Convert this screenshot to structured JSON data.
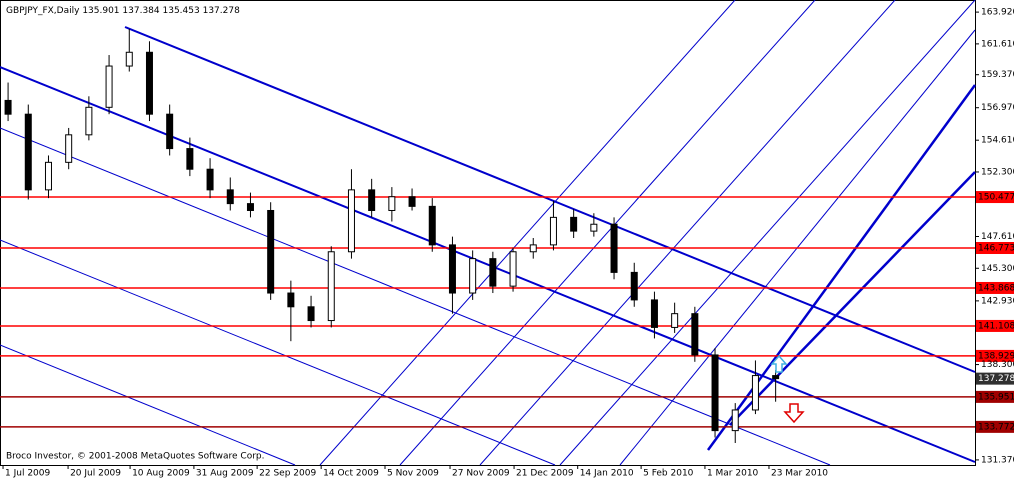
{
  "chart_data": {
    "type": "candlestick",
    "symbol": "GBPJPY_FX,Daily",
    "ohlc": [
      135.901,
      137.384,
      135.453,
      137.278
    ],
    "footer": "Broco Investor, © 2001-2008 MetaQuotes Software Corp.",
    "color": "#000000",
    "open": [
      157.5,
      156.5,
      151.0,
      153.0,
      155.0,
      157.0,
      160.0,
      161.0,
      156.5,
      154.0,
      152.5,
      151.0,
      150.0,
      149.5,
      143.5,
      142.5,
      141.5,
      146.5,
      151.0,
      149.5,
      150.5,
      149.8,
      147.0,
      143.5,
      146.0,
      144.0,
      146.5,
      147.0,
      149.0,
      148.0,
      148.5,
      145.0,
      143.0,
      141.0,
      142.0,
      139.0,
      133.5,
      135.0,
      137.5
    ],
    "high": [
      158.8,
      157.2,
      153.5,
      155.5,
      157.8,
      160.8,
      162.7,
      161.8,
      157.2,
      154.8,
      153.3,
      151.9,
      150.8,
      150.1,
      144.4,
      143.3,
      146.9,
      152.5,
      151.8,
      151.2,
      151.1,
      150.4,
      147.6,
      146.6,
      146.5,
      146.8,
      147.5,
      150.2,
      149.6,
      149.3,
      149.0,
      145.7,
      143.6,
      142.8,
      142.5,
      139.5,
      135.5,
      138.6,
      137.9
    ],
    "low": [
      156.0,
      150.3,
      150.4,
      152.5,
      154.6,
      156.5,
      159.6,
      156.0,
      153.5,
      152.0,
      150.4,
      149.5,
      149.0,
      143.0,
      140.0,
      141.0,
      141.0,
      146.0,
      149.0,
      148.7,
      149.5,
      146.5,
      142.0,
      143.0,
      143.5,
      143.6,
      146.0,
      146.6,
      147.5,
      147.6,
      144.5,
      142.5,
      140.2,
      140.6,
      138.5,
      133.0,
      132.6,
      134.7,
      135.6
    ],
    "close": [
      156.5,
      151.0,
      153.0,
      155.0,
      157.0,
      160.0,
      161.0,
      156.5,
      154.0,
      152.5,
      151.0,
      150.0,
      149.5,
      143.5,
      142.5,
      141.5,
      146.5,
      151.0,
      149.5,
      150.5,
      149.8,
      147.0,
      143.5,
      146.0,
      144.0,
      146.5,
      147.0,
      149.0,
      148.0,
      148.5,
      145.0,
      143.0,
      141.0,
      142.0,
      139.0,
      133.5,
      135.0,
      137.5,
      137.278
    ],
    "xlim": [
      -0.4,
      47.87
    ],
    "xticks": [
      {
        "value": -0.25,
        "label": "1 Jul 2009"
      },
      {
        "value": 2.97,
        "label": "20 Jul 2009"
      },
      {
        "value": 6.04,
        "label": "10 Aug 2009"
      },
      {
        "value": 9.2,
        "label": "31 Aug 2009"
      },
      {
        "value": 12.33,
        "label": "22 Sep 2009"
      },
      {
        "value": 15.5,
        "label": "14 Oct 2009"
      },
      {
        "value": 18.66,
        "label": "5 Nov 2009"
      },
      {
        "value": 21.88,
        "label": "27 Nov 2009"
      },
      {
        "value": 25.05,
        "label": "21 Dec 2009"
      },
      {
        "value": 28.2,
        "label": "14 Jan 2010"
      },
      {
        "value": 31.34,
        "label": "5 Feb 2010"
      },
      {
        "value": 34.5,
        "label": "1 Mar 2010"
      },
      {
        "value": 37.67,
        "label": "23 Mar 2010"
      }
    ],
    "ylim": [
      131.0,
      164.8
    ],
    "yticks": [
      {
        "value": 163.92,
        "label": "163.920"
      },
      {
        "value": 161.61,
        "label": "161.610"
      },
      {
        "value": 159.37,
        "label": "159.370"
      },
      {
        "value": 156.97,
        "label": "156.970"
      },
      {
        "value": 154.61,
        "label": "154.610"
      },
      {
        "value": 152.3,
        "label": "152.300"
      },
      {
        "value": 147.61,
        "label": "147.610"
      },
      {
        "value": 145.3,
        "label": "145.300"
      },
      {
        "value": 142.93,
        "label": "142.930"
      },
      {
        "value": 138.3,
        "label": "138.300"
      },
      {
        "value": 131.37,
        "label": "131.370"
      }
    ],
    "levels": [
      {
        "value": 150.477,
        "color": "#ff0000"
      },
      {
        "value": 146.773,
        "color": "#ff0000"
      },
      {
        "value": 143.868,
        "color": "#ff0000"
      },
      {
        "value": 141.108,
        "color": "#ff0000"
      },
      {
        "value": 138.929,
        "color": "#ff0000"
      },
      {
        "value": 135.951,
        "color": "#a00000"
      },
      {
        "value": 133.772,
        "color": "#a00000"
      }
    ],
    "current_price": 137.278
  }
}
